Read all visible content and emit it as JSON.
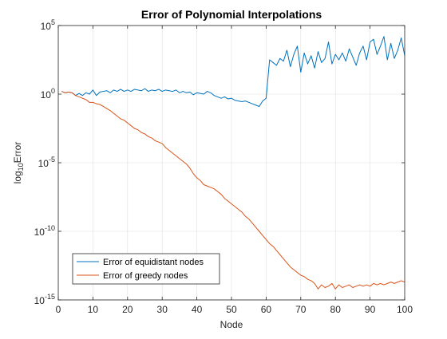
{
  "chart_data": {
    "type": "line",
    "title": "Error of Polynomial Interpolations",
    "xlabel": "Node",
    "ylabel": {
      "base": "log",
      "sub": "10",
      "rest": "Error"
    },
    "xlim": [
      0,
      100
    ],
    "ylim_log10": [
      -15,
      5
    ],
    "yscale": "log",
    "grid": true,
    "legend_position": "bottom-left",
    "x_ticks": [
      0,
      10,
      20,
      30,
      40,
      50,
      60,
      70,
      80,
      90,
      100
    ],
    "y_ticks": [
      {
        "base": "10",
        "exp": "-15",
        "value_log10": -15
      },
      {
        "base": "10",
        "exp": "-10",
        "value_log10": -10
      },
      {
        "base": "10",
        "exp": "-5",
        "value_log10": -5
      },
      {
        "base": "10",
        "exp": "0",
        "value_log10": 0
      },
      {
        "base": "10",
        "exp": "5",
        "value_log10": 5
      }
    ],
    "x": [
      1,
      2,
      3,
      4,
      5,
      6,
      7,
      8,
      9,
      10,
      11,
      12,
      13,
      14,
      15,
      16,
      17,
      18,
      19,
      20,
      21,
      22,
      23,
      24,
      25,
      26,
      27,
      28,
      29,
      30,
      31,
      32,
      33,
      34,
      35,
      36,
      37,
      38,
      39,
      40,
      41,
      42,
      43,
      44,
      45,
      46,
      47,
      48,
      49,
      50,
      51,
      52,
      53,
      54,
      55,
      56,
      57,
      58,
      59,
      60,
      61,
      62,
      63,
      64,
      65,
      66,
      67,
      68,
      69,
      70,
      71,
      72,
      73,
      74,
      75,
      76,
      77,
      78,
      79,
      80,
      81,
      82,
      83,
      84,
      85,
      86,
      87,
      88,
      89,
      90,
      91,
      92,
      93,
      94,
      95,
      96,
      97,
      98,
      99,
      100
    ],
    "series": [
      {
        "name": "Error of equidistant nodes",
        "color": "#0072bd",
        "log10_values": [
          0.2,
          0.1,
          0.15,
          0.1,
          -0.1,
          0.05,
          -0.1,
          0.1,
          0.0,
          0.3,
          -0.1,
          0.15,
          0.2,
          0.25,
          0.1,
          0.3,
          0.2,
          0.35,
          0.2,
          0.3,
          0.2,
          0.35,
          0.3,
          0.25,
          0.4,
          0.2,
          0.3,
          0.25,
          0.35,
          0.2,
          0.3,
          0.25,
          0.2,
          0.3,
          0.1,
          0.2,
          0.1,
          0.15,
          -0.05,
          0.1,
          0.05,
          0.0,
          0.2,
          0.1,
          -0.1,
          -0.2,
          -0.3,
          -0.2,
          -0.35,
          -0.3,
          -0.45,
          -0.5,
          -0.55,
          -0.5,
          -0.6,
          -0.7,
          -0.8,
          -0.9,
          -0.5,
          -0.3,
          2.5,
          2.3,
          2.1,
          2.6,
          2.4,
          3.2,
          2.0,
          2.9,
          3.5,
          1.6,
          3.0,
          2.2,
          2.8,
          1.9,
          3.1,
          2.3,
          2.6,
          3.8,
          2.2,
          2.9,
          2.5,
          3.0,
          2.4,
          3.3,
          2.7,
          2.1,
          3.0,
          3.5,
          2.5,
          3.8,
          4.0,
          2.9,
          3.5,
          4.2,
          2.5,
          3.7,
          2.6,
          3.2,
          4.1,
          2.8
        ]
      },
      {
        "name": "Error of greedy nodes",
        "color": "#d95319",
        "log10_values": [
          0.2,
          0.1,
          0.15,
          0.1,
          -0.1,
          -0.2,
          -0.3,
          -0.4,
          -0.6,
          -0.6,
          -0.7,
          -0.75,
          -0.9,
          -1.05,
          -1.2,
          -1.4,
          -1.6,
          -1.8,
          -1.9,
          -2.1,
          -2.3,
          -2.5,
          -2.6,
          -2.8,
          -2.9,
          -3.1,
          -3.2,
          -3.4,
          -3.5,
          -3.6,
          -3.9,
          -4.1,
          -4.3,
          -4.5,
          -4.7,
          -4.9,
          -5.1,
          -5.4,
          -5.8,
          -6.1,
          -6.3,
          -6.6,
          -6.7,
          -6.8,
          -6.9,
          -7.1,
          -7.3,
          -7.6,
          -7.8,
          -8.0,
          -8.2,
          -8.4,
          -8.6,
          -8.9,
          -9.1,
          -9.4,
          -9.7,
          -10.0,
          -10.3,
          -10.6,
          -10.9,
          -11.1,
          -11.4,
          -11.7,
          -12.0,
          -12.3,
          -12.6,
          -12.8,
          -13.0,
          -13.2,
          -13.3,
          -13.5,
          -13.6,
          -13.8,
          -14.2,
          -13.9,
          -14.1,
          -14.0,
          -13.8,
          -14.2,
          -13.9,
          -14.1,
          -14.0,
          -13.9,
          -14.1,
          -14.0,
          -13.9,
          -14.0,
          -13.9,
          -14.0,
          -13.8,
          -13.9,
          -13.8,
          -13.9,
          -13.8,
          -13.7,
          -13.8,
          -13.7,
          -13.6,
          -13.7
        ]
      }
    ]
  }
}
